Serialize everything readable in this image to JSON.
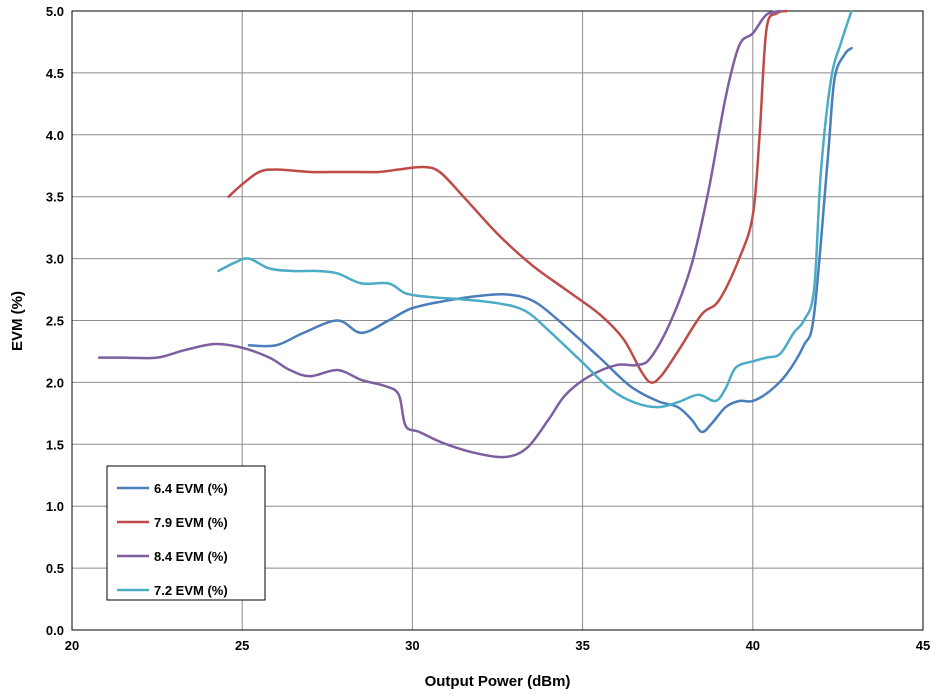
{
  "chart_data": {
    "type": "line",
    "title": "",
    "xlabel": "Output Power (dBm)",
    "ylabel": "EVM (%)",
    "xlim": [
      20,
      45
    ],
    "ylim": [
      0,
      5
    ],
    "x_ticks": [
      "20",
      "25",
      "30",
      "35",
      "40",
      "45"
    ],
    "y_ticks": [
      "0.0",
      "0.5",
      "1.0",
      "1.5",
      "2.0",
      "2.5",
      "3.0",
      "3.5",
      "4.0",
      "4.5",
      "5.0"
    ],
    "grid": true,
    "legend_position": "bottom-left",
    "series": [
      {
        "name": "6.4 EVM (%)",
        "color": "#4a7ebb",
        "points": [
          [
            25.2,
            2.3
          ],
          [
            26.0,
            2.3
          ],
          [
            26.8,
            2.4
          ],
          [
            27.8,
            2.5
          ],
          [
            28.5,
            2.4
          ],
          [
            29.3,
            2.5
          ],
          [
            30.0,
            2.6
          ],
          [
            31.0,
            2.66
          ],
          [
            32.0,
            2.7
          ],
          [
            32.8,
            2.71
          ],
          [
            33.6,
            2.65
          ],
          [
            34.5,
            2.45
          ],
          [
            35.5,
            2.2
          ],
          [
            36.4,
            1.97
          ],
          [
            37.2,
            1.85
          ],
          [
            37.8,
            1.8
          ],
          [
            38.2,
            1.7
          ],
          [
            38.5,
            1.6
          ],
          [
            38.8,
            1.67
          ],
          [
            39.2,
            1.8
          ],
          [
            39.6,
            1.85
          ],
          [
            40.0,
            1.85
          ],
          [
            40.5,
            1.93
          ],
          [
            41.0,
            2.07
          ],
          [
            41.5,
            2.3
          ],
          [
            41.8,
            2.55
          ],
          [
            42.2,
            3.8
          ],
          [
            42.4,
            4.45
          ],
          [
            42.7,
            4.65
          ],
          [
            42.9,
            4.7
          ]
        ]
      },
      {
        "name": "7.9 EVM (%)",
        "color": "#be4b48",
        "points": [
          [
            24.6,
            3.5
          ],
          [
            25.0,
            3.6
          ],
          [
            25.5,
            3.7
          ],
          [
            26.0,
            3.72
          ],
          [
            27.0,
            3.7
          ],
          [
            28.0,
            3.7
          ],
          [
            29.0,
            3.7
          ],
          [
            29.6,
            3.72
          ],
          [
            30.3,
            3.74
          ],
          [
            30.8,
            3.7
          ],
          [
            31.5,
            3.5
          ],
          [
            32.5,
            3.2
          ],
          [
            33.5,
            2.95
          ],
          [
            34.5,
            2.75
          ],
          [
            35.5,
            2.55
          ],
          [
            36.2,
            2.35
          ],
          [
            36.7,
            2.1
          ],
          [
            37.0,
            2.0
          ],
          [
            37.3,
            2.05
          ],
          [
            37.8,
            2.25
          ],
          [
            38.5,
            2.55
          ],
          [
            39.0,
            2.66
          ],
          [
            39.6,
            3.0
          ],
          [
            40.0,
            3.35
          ],
          [
            40.2,
            4.0
          ],
          [
            40.4,
            4.85
          ],
          [
            40.7,
            4.98
          ],
          [
            41.0,
            5.0
          ]
        ]
      },
      {
        "name": "8.4 EVM (%)",
        "color": "#7d5fa0",
        "points": [
          [
            20.8,
            2.2
          ],
          [
            21.5,
            2.2
          ],
          [
            22.5,
            2.2
          ],
          [
            23.3,
            2.26
          ],
          [
            24.2,
            2.31
          ],
          [
            25.0,
            2.28
          ],
          [
            25.8,
            2.2
          ],
          [
            26.4,
            2.1
          ],
          [
            27.0,
            2.05
          ],
          [
            27.8,
            2.1
          ],
          [
            28.5,
            2.02
          ],
          [
            29.2,
            1.97
          ],
          [
            29.6,
            1.9
          ],
          [
            29.8,
            1.65
          ],
          [
            30.2,
            1.6
          ],
          [
            31.0,
            1.5
          ],
          [
            32.0,
            1.42
          ],
          [
            32.8,
            1.4
          ],
          [
            33.4,
            1.48
          ],
          [
            34.0,
            1.7
          ],
          [
            34.5,
            1.9
          ],
          [
            35.2,
            2.05
          ],
          [
            36.0,
            2.14
          ],
          [
            36.6,
            2.14
          ],
          [
            37.0,
            2.2
          ],
          [
            37.6,
            2.5
          ],
          [
            38.2,
            2.95
          ],
          [
            38.7,
            3.55
          ],
          [
            39.2,
            4.3
          ],
          [
            39.6,
            4.72
          ],
          [
            40.0,
            4.82
          ],
          [
            40.4,
            4.97
          ],
          [
            40.8,
            5.0
          ]
        ]
      },
      {
        "name": "7.2 EVM (%)",
        "color": "#4bacc6",
        "points": [
          [
            24.3,
            2.9
          ],
          [
            24.8,
            2.97
          ],
          [
            25.2,
            3.0
          ],
          [
            25.8,
            2.92
          ],
          [
            26.5,
            2.9
          ],
          [
            27.2,
            2.9
          ],
          [
            27.8,
            2.88
          ],
          [
            28.5,
            2.8
          ],
          [
            29.3,
            2.8
          ],
          [
            29.8,
            2.72
          ],
          [
            30.5,
            2.69
          ],
          [
            31.5,
            2.67
          ],
          [
            32.5,
            2.64
          ],
          [
            33.3,
            2.58
          ],
          [
            34.0,
            2.42
          ],
          [
            35.0,
            2.16
          ],
          [
            35.8,
            1.95
          ],
          [
            36.5,
            1.84
          ],
          [
            37.2,
            1.8
          ],
          [
            37.8,
            1.84
          ],
          [
            38.4,
            1.9
          ],
          [
            38.9,
            1.85
          ],
          [
            39.2,
            1.95
          ],
          [
            39.5,
            2.12
          ],
          [
            40.0,
            2.17
          ],
          [
            40.4,
            2.2
          ],
          [
            40.8,
            2.23
          ],
          [
            41.2,
            2.4
          ],
          [
            41.5,
            2.5
          ],
          [
            41.8,
            2.75
          ],
          [
            42.0,
            3.7
          ],
          [
            42.3,
            4.45
          ],
          [
            42.6,
            4.75
          ],
          [
            42.9,
            5.0
          ]
        ]
      }
    ]
  }
}
